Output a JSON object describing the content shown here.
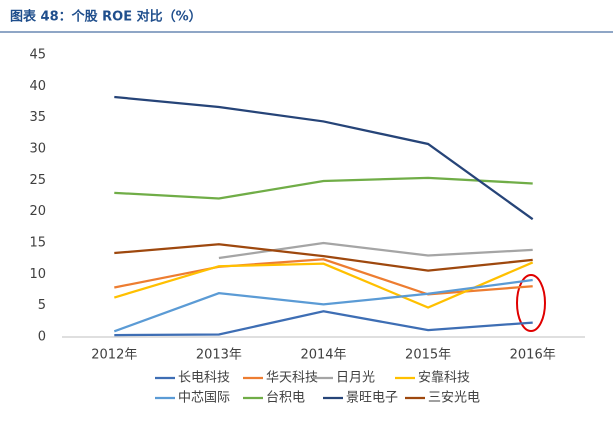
{
  "chart_data": {
    "type": "line",
    "title": "图表 48：个股 ROE 对比（%）",
    "categories": [
      "2012年",
      "2013年",
      "2014年",
      "2015年",
      "2016年"
    ],
    "ylim": [
      0,
      45
    ],
    "yticks": [
      0,
      5,
      10,
      15,
      20,
      25,
      30,
      35,
      40,
      45
    ],
    "series": [
      {
        "name": "长电科技",
        "color": "#3e6eb4",
        "values": [
          0.3,
          0.4,
          4.1,
          1.1,
          2.3
        ]
      },
      {
        "name": "华天科技",
        "color": "#ed7d31",
        "values": [
          7.9,
          11.2,
          12.4,
          6.8,
          8.1
        ]
      },
      {
        "name": "日月光",
        "color": "#a5a5a5",
        "values": [
          null,
          12.6,
          15.0,
          13.0,
          13.9
        ]
      },
      {
        "name": "安靠科技",
        "color": "#ffc000",
        "values": [
          6.3,
          11.3,
          11.7,
          4.7,
          11.9
        ]
      },
      {
        "name": "中芯国际",
        "color": "#5b9bd5",
        "values": [
          0.9,
          7.0,
          5.2,
          6.9,
          9.1
        ]
      },
      {
        "name": "台积电",
        "color": "#70ad47",
        "values": [
          23.0,
          22.1,
          24.9,
          25.4,
          24.5
        ]
      },
      {
        "name": "景旺电子",
        "color": "#264478",
        "values": [
          38.3,
          36.7,
          34.4,
          30.8,
          18.8
        ]
      },
      {
        "name": "三安光电",
        "color": "#9e480e",
        "values": [
          13.4,
          14.8,
          12.9,
          10.6,
          12.3
        ]
      }
    ]
  }
}
